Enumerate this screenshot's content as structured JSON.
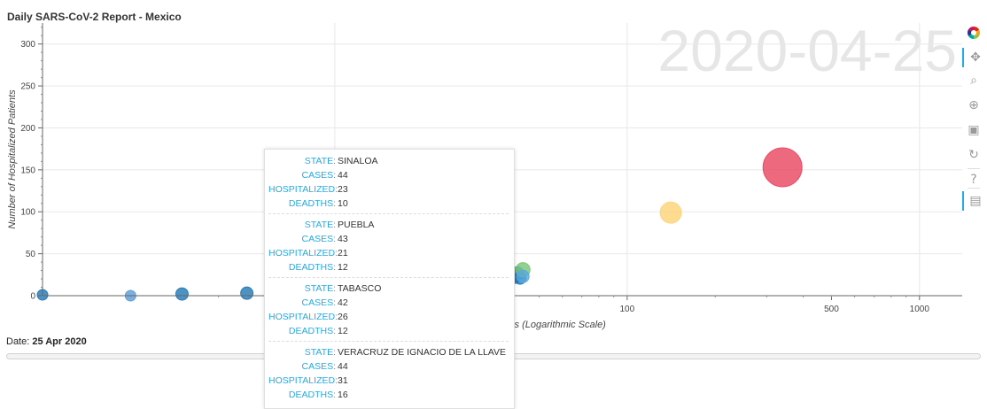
{
  "chart_data": {
    "type": "scatter",
    "title": "Daily SARS-CoV-2 Report - Mexico",
    "watermark": "2020-04-25",
    "xlabel": "Number of Reported Cases (Logarithmic Scale)",
    "ylabel": "Number of Hospitalized Patients",
    "x_scale": "log",
    "xlim": [
      1,
      1400
    ],
    "ylim": [
      0,
      325
    ],
    "x_ticks": [
      100,
      500,
      1000
    ],
    "y_ticks": [
      0,
      50,
      100,
      150,
      200,
      250,
      300
    ],
    "grid": true,
    "points": [
      {
        "x": 1,
        "y": 1,
        "size": 6,
        "color": "#1f77b4"
      },
      {
        "x": 2,
        "y": 0,
        "size": 6,
        "color": "#5a9bd4"
      },
      {
        "x": 3,
        "y": 2,
        "size": 7,
        "color": "#1f77b4"
      },
      {
        "x": 5,
        "y": 3,
        "size": 7,
        "color": "#1f77b4"
      },
      {
        "x": 38,
        "y": 7,
        "size": 5,
        "color": "#1f77b4"
      },
      {
        "x": 41,
        "y": 23,
        "size": 8,
        "color": "#1f77b4"
      },
      {
        "x": 42,
        "y": 26,
        "size": 8,
        "color": "#3a8ccf"
      },
      {
        "x": 43,
        "y": 21,
        "size": 7,
        "color": "#1f77b4"
      },
      {
        "x": 44,
        "y": 31,
        "size": 8,
        "color": "#74c476"
      },
      {
        "x": 44,
        "y": 23,
        "size": 7,
        "color": "#5aa9dd"
      },
      {
        "x": 141,
        "y": 99,
        "size": 12,
        "color": "#fdd377"
      },
      {
        "x": 340,
        "y": 153,
        "size": 22,
        "color": "#e9435e"
      }
    ]
  },
  "date_label": "Date:",
  "date_value": "25 Apr 2020",
  "slider_value": 0.5,
  "tooltip": [
    {
      "rows": [
        {
          "key": "STATE:",
          "val": "SINALOA"
        },
        {
          "key": "CASES:",
          "val": "44"
        },
        {
          "key": "HOSPITALIZED:",
          "val": "23"
        },
        {
          "key": "DEADTHS:",
          "val": "10"
        }
      ]
    },
    {
      "rows": [
        {
          "key": "STATE:",
          "val": "PUEBLA"
        },
        {
          "key": "CASES:",
          "val": "43"
        },
        {
          "key": "HOSPITALIZED:",
          "val": "21"
        },
        {
          "key": "DEADTHS:",
          "val": "12"
        }
      ]
    },
    {
      "rows": [
        {
          "key": "STATE:",
          "val": "TABASCO"
        },
        {
          "key": "CASES:",
          "val": "42"
        },
        {
          "key": "HOSPITALIZED:",
          "val": "26"
        },
        {
          "key": "DEADTHS:",
          "val": "12"
        }
      ]
    },
    {
      "rows": [
        {
          "key": "STATE:",
          "val": "VERACRUZ DE IGNACIO DE LA LLAVE"
        },
        {
          "key": "CASES:",
          "val": "44"
        },
        {
          "key": "HOSPITALIZED:",
          "val": "31"
        },
        {
          "key": "DEADTHS:",
          "val": "16"
        }
      ]
    }
  ],
  "toolbar": [
    {
      "name": "bokeh-logo-icon",
      "glyph": "",
      "active": false
    },
    {
      "name": "pan-tool-icon",
      "glyph": "✥",
      "active": true
    },
    {
      "name": "box-zoom-tool-icon",
      "glyph": "⌕",
      "active": false
    },
    {
      "name": "wheel-zoom-tool-icon",
      "glyph": "⊕",
      "active": false
    },
    {
      "name": "save-tool-icon",
      "glyph": "▣",
      "active": false
    },
    {
      "name": "reset-tool-icon",
      "glyph": "↻",
      "active": false
    },
    {
      "name": "help-tool-icon",
      "glyph": "?",
      "active": false
    },
    {
      "name": "hover-tool-icon",
      "glyph": "▤",
      "active": true
    }
  ]
}
